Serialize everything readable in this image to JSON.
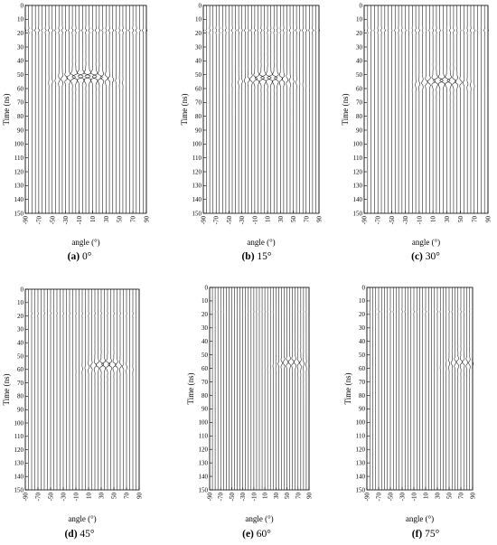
{
  "chart_data": [
    {
      "type": "line",
      "panel": "(a)",
      "caption_value": "0°",
      "xlabel": "angle (°)",
      "ylabel": "Time (ns)",
      "x_ticks": [
        -90,
        -70,
        -50,
        -30,
        -10,
        10,
        30,
        50,
        70,
        90
      ],
      "y_ticks": [
        0,
        10,
        20,
        30,
        40,
        50,
        60,
        70,
        80,
        90,
        100,
        110,
        120,
        130,
        140,
        150
      ],
      "xlim": [
        -90,
        90
      ],
      "ylim": [
        150,
        0
      ],
      "traces": {
        "angles": [
          -90,
          -85,
          -80,
          -75,
          -70,
          -65,
          -60,
          -55,
          -50,
          -45,
          -40,
          -35,
          -30,
          -25,
          -20,
          -15,
          -10,
          -5,
          0,
          5,
          10,
          15,
          20,
          25,
          30,
          35,
          40,
          45,
          50,
          55,
          60,
          65,
          70,
          75,
          80,
          85,
          90
        ]
      },
      "direct_wave": {
        "time_ns": 18,
        "amplitude": 0.6
      },
      "reflection": {
        "center_angle_deg": 0,
        "time_ns": 51,
        "angular_halfwidth_deg": 40,
        "peak_amplitude": 3.6
      }
    },
    {
      "type": "line",
      "panel": "(b)",
      "caption_value": "15°",
      "xlabel": "angle (°)",
      "ylabel": "Time (ns)",
      "x_ticks": [
        -90,
        -70,
        -50,
        -30,
        -10,
        10,
        30,
        50,
        70,
        90
      ],
      "y_ticks": [
        0,
        10,
        20,
        30,
        40,
        50,
        60,
        70,
        80,
        90,
        100,
        110,
        120,
        130,
        140,
        150
      ],
      "xlim": [
        -90,
        90
      ],
      "ylim": [
        150,
        0
      ],
      "traces": {
        "angles": [
          -90,
          -85,
          -80,
          -75,
          -70,
          -65,
          -60,
          -55,
          -50,
          -45,
          -40,
          -35,
          -30,
          -25,
          -20,
          -15,
          -10,
          -5,
          0,
          5,
          10,
          15,
          20,
          25,
          30,
          35,
          40,
          45,
          50,
          55,
          60,
          65,
          70,
          75,
          80,
          85,
          90
        ]
      },
      "direct_wave": {
        "time_ns": 18,
        "amplitude": 0.5
      },
      "reflection": {
        "center_angle_deg": 10,
        "time_ns": 52,
        "angular_halfwidth_deg": 38,
        "peak_amplitude": 3.0
      }
    },
    {
      "type": "line",
      "panel": "(c)",
      "caption_value": "30°",
      "xlabel": "angle (°)",
      "ylabel": "Time (ns)",
      "x_ticks": [
        -90,
        -70,
        -50,
        -30,
        -10,
        10,
        30,
        50,
        70,
        90
      ],
      "y_ticks": [
        0,
        10,
        20,
        30,
        40,
        50,
        60,
        70,
        80,
        90,
        100,
        110,
        120,
        130,
        140,
        150
      ],
      "xlim": [
        -90,
        90
      ],
      "ylim": [
        150,
        0
      ],
      "traces": {
        "angles": [
          -90,
          -85,
          -80,
          -75,
          -70,
          -65,
          -60,
          -55,
          -50,
          -45,
          -40,
          -35,
          -30,
          -25,
          -20,
          -15,
          -10,
          -5,
          0,
          5,
          10,
          15,
          20,
          25,
          30,
          35,
          40,
          45,
          50,
          55,
          60,
          65,
          70,
          75,
          80,
          85,
          90
        ]
      },
      "direct_wave": {
        "time_ns": 18,
        "amplitude": 0.4
      },
      "reflection": {
        "center_angle_deg": 25,
        "time_ns": 54,
        "angular_halfwidth_deg": 35,
        "peak_amplitude": 2.6
      }
    },
    {
      "type": "line",
      "panel": "(d)",
      "caption_value": "45°",
      "xlabel": "angle (°)",
      "ylabel": "Time (ns)",
      "x_ticks": [
        -90,
        -70,
        -50,
        -30,
        -10,
        10,
        30,
        50,
        70,
        90
      ],
      "y_ticks": [
        0,
        10,
        20,
        30,
        40,
        50,
        60,
        70,
        80,
        90,
        100,
        110,
        120,
        130,
        140,
        150
      ],
      "xlim": [
        -90,
        90
      ],
      "ylim": [
        150,
        0
      ],
      "traces": {
        "angles": [
          -90,
          -85,
          -80,
          -75,
          -70,
          -65,
          -60,
          -55,
          -50,
          -45,
          -40,
          -35,
          -30,
          -25,
          -20,
          -15,
          -10,
          -5,
          0,
          5,
          10,
          15,
          20,
          25,
          30,
          35,
          40,
          45,
          50,
          55,
          60,
          65,
          70,
          75,
          80,
          85,
          90
        ]
      },
      "direct_wave": {
        "time_ns": 18,
        "amplitude": 0.2
      },
      "reflection": {
        "center_angle_deg": 38,
        "time_ns": 56,
        "angular_halfwidth_deg": 33,
        "peak_amplitude": 2.2
      }
    },
    {
      "type": "line",
      "panel": "(e)",
      "caption_value": "60°",
      "xlabel": "angle (°)",
      "ylabel": "Time (ns)",
      "x_ticks": [
        -90,
        -70,
        -50,
        -30,
        -10,
        10,
        30,
        50,
        70,
        90
      ],
      "y_ticks": [
        0,
        10,
        20,
        30,
        40,
        50,
        60,
        70,
        80,
        90,
        100,
        110,
        120,
        130,
        140,
        150
      ],
      "xlim": [
        -90,
        90
      ],
      "ylim": [
        150,
        0
      ],
      "traces": {
        "angles": [
          -90,
          -85,
          -80,
          -75,
          -70,
          -65,
          -60,
          -55,
          -50,
          -45,
          -40,
          -35,
          -30,
          -25,
          -20,
          -15,
          -10,
          -5,
          0,
          5,
          10,
          15,
          20,
          25,
          30,
          35,
          40,
          45,
          50,
          55,
          60,
          65,
          70,
          75,
          80,
          85,
          90
        ]
      },
      "direct_wave": {
        "time_ns": 18,
        "amplitude": 0.1
      },
      "reflection": {
        "center_angle_deg": 58,
        "time_ns": 55,
        "angular_halfwidth_deg": 30,
        "peak_amplitude": 1.6
      }
    },
    {
      "type": "line",
      "panel": "(f)",
      "caption_value": "75°",
      "xlabel": "angle (°)",
      "ylabel": "Time (ns)",
      "x_ticks": [
        -90,
        -70,
        -50,
        -30,
        -10,
        10,
        30,
        50,
        70,
        90
      ],
      "y_ticks": [
        0,
        10,
        20,
        30,
        40,
        50,
        60,
        70,
        80,
        90,
        100,
        110,
        120,
        130,
        140,
        150
      ],
      "xlim": [
        -90,
        90
      ],
      "ylim": [
        150,
        0
      ],
      "traces": {
        "angles": [
          -90,
          -85,
          -80,
          -75,
          -70,
          -65,
          -60,
          -55,
          -50,
          -45,
          -40,
          -35,
          -30,
          -25,
          -20,
          -15,
          -10,
          -5,
          0,
          5,
          10,
          15,
          20,
          25,
          30,
          35,
          40,
          45,
          50,
          55,
          60,
          65,
          70,
          75,
          80,
          85,
          90
        ]
      },
      "direct_wave": {
        "time_ns": 18,
        "amplitude": 0.2
      },
      "reflection": {
        "center_angle_deg": 70,
        "time_ns": 55,
        "angular_halfwidth_deg": 28,
        "peak_amplitude": 1.4
      }
    }
  ]
}
